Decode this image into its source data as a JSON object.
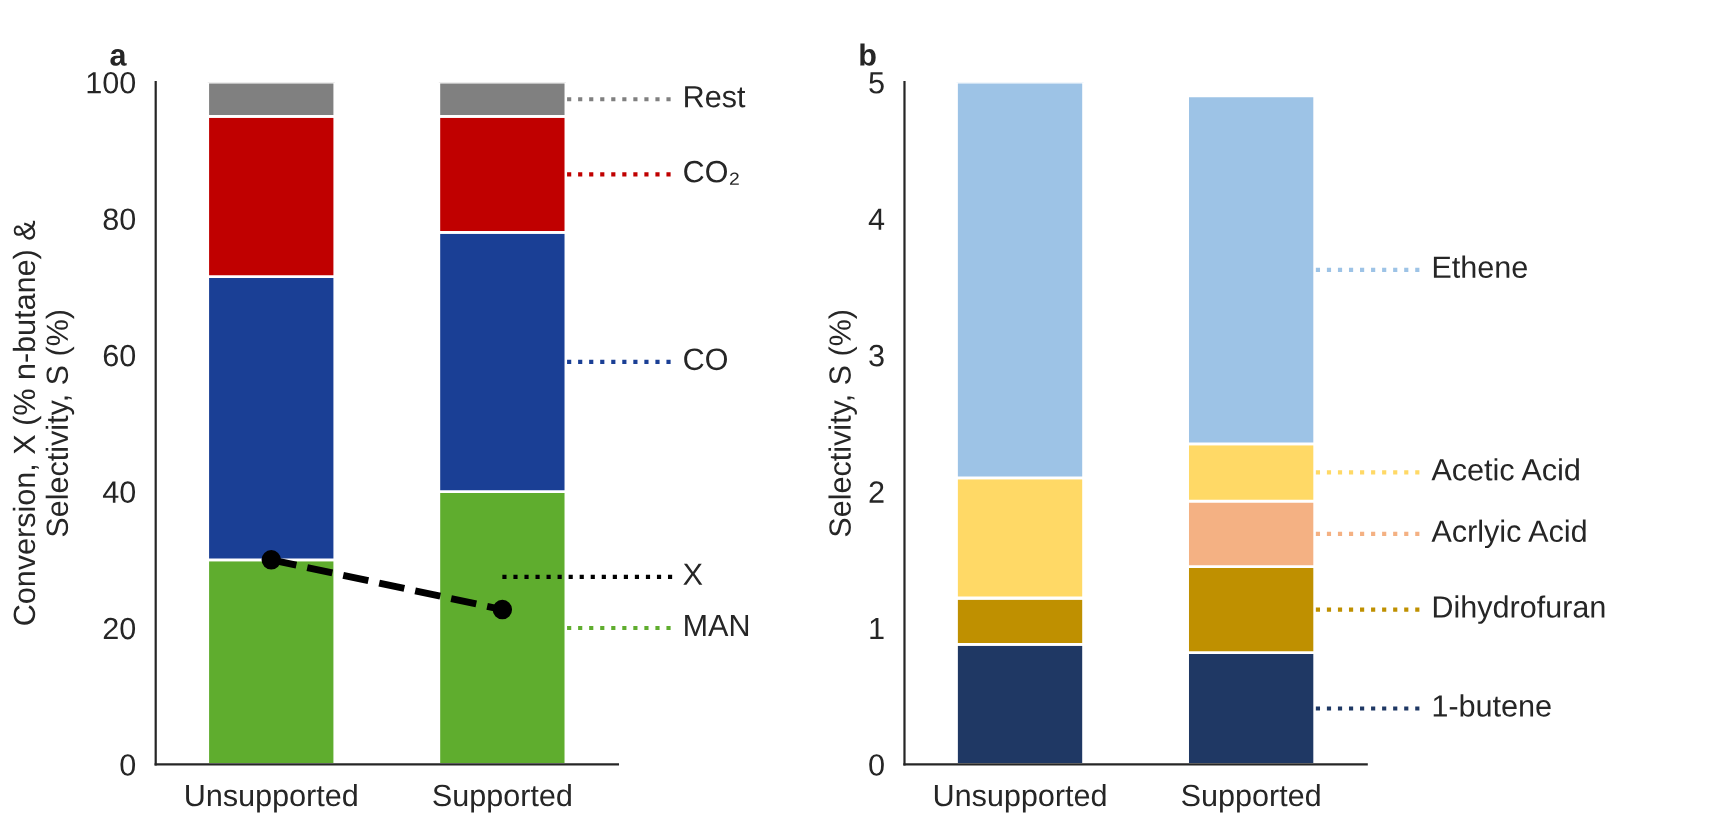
{
  "chart_data": [
    {
      "type": "bar",
      "title": "a",
      "ylabel": "Conversion, X (% n-butane) &\nSelectivity, S (%)",
      "categories": [
        "Unsupported",
        "Supported"
      ],
      "stacked": true,
      "ylim": [
        0,
        100
      ],
      "yticks": [
        0,
        20,
        40,
        60,
        80,
        100
      ],
      "grid": false,
      "legend": "right",
      "series": [
        {
          "name": "MAN",
          "color": "#5fad2e",
          "values": [
            30,
            40
          ]
        },
        {
          "name": "CO",
          "color": "#1a3f95",
          "values": [
            41.5,
            38
          ]
        },
        {
          "name": "CO₂",
          "color": "#c00000",
          "values": [
            23.5,
            17
          ]
        },
        {
          "name": "Rest",
          "color": "#808080",
          "values": [
            5,
            5
          ]
        },
        {
          "name": "X",
          "type": "line",
          "color": "#000000",
          "marker": "circle",
          "line_style": "dashed",
          "values": [
            30,
            22.7
          ]
        }
      ]
    },
    {
      "type": "bar",
      "title": "b",
      "ylabel": "Selectivity, S (%)",
      "categories": [
        "Unsupported",
        "Supported"
      ],
      "stacked": true,
      "ylim": [
        0,
        5
      ],
      "yticks": [
        0,
        1,
        2,
        3,
        4,
        5
      ],
      "grid": false,
      "legend": "right",
      "series": [
        {
          "name": "1-butene",
          "color": "#1f3864",
          "values": [
            0.88,
            0.82
          ]
        },
        {
          "name": "Dihydrofuran",
          "color": "#bf9000",
          "values": [
            0.34,
            0.63
          ]
        },
        {
          "name": "Acrlyic Acid",
          "color": "#f4b183",
          "values": [
            0,
            0.48
          ]
        },
        {
          "name": "Acetic Acid",
          "color": "#ffd966",
          "values": [
            0.88,
            0.42
          ]
        },
        {
          "name": "Ethene",
          "color": "#9dc3e6",
          "values": [
            2.9,
            2.55
          ]
        }
      ]
    }
  ]
}
